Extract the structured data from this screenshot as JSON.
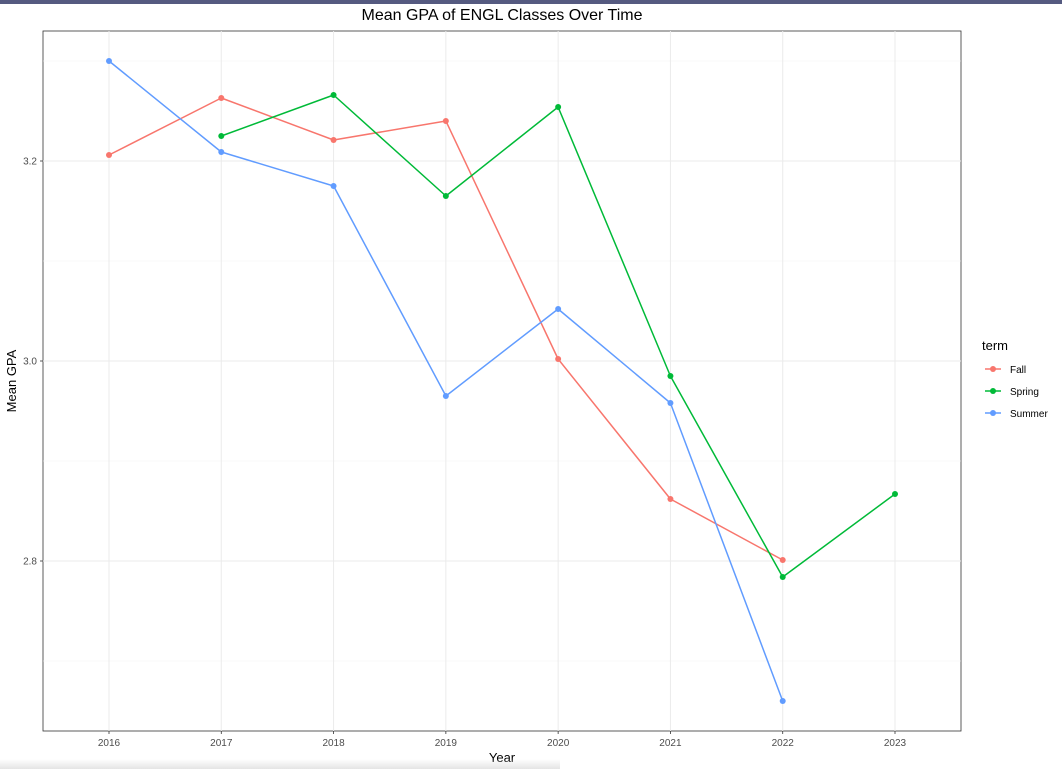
{
  "chart_data": {
    "type": "line",
    "title": "Mean GPA of ENGL Classes Over Time",
    "xlabel": "Year",
    "ylabel": "Mean GPA",
    "categories": [
      "2016",
      "2017",
      "2018",
      "2019",
      "2020",
      "2021",
      "2022",
      "2023"
    ],
    "y_ticks": [
      "2.8",
      "3.0",
      "3.2"
    ],
    "y_tick_values": [
      2.8,
      3.0,
      3.2
    ],
    "ylim": [
      2.63,
      3.33
    ],
    "grid": true,
    "legend_title": "term",
    "legend_position": "right",
    "series": [
      {
        "name": "Fall",
        "color": "#F8766D",
        "values": [
          3.206,
          3.263,
          3.221,
          3.24,
          3.002,
          2.862,
          2.801,
          null
        ]
      },
      {
        "name": "Spring",
        "color": "#00BA38",
        "values": [
          null,
          3.225,
          3.266,
          3.165,
          3.254,
          2.985,
          2.784,
          2.867
        ]
      },
      {
        "name": "Summer",
        "color": "#619CFF",
        "values": [
          3.3,
          3.209,
          3.175,
          2.965,
          3.052,
          2.958,
          2.66,
          null
        ]
      }
    ]
  }
}
